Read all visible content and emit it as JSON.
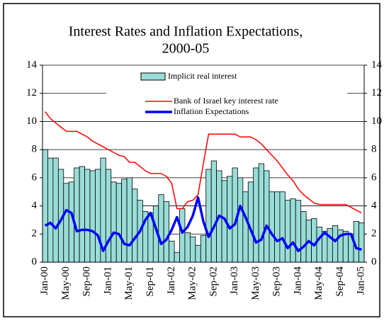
{
  "chart_data": {
    "type": "combo",
    "title": [
      "Interest Rates and Inflation Expectations,",
      "2000-05"
    ],
    "categories": [
      "Jan-00",
      null,
      null,
      null,
      "May-00",
      null,
      null,
      null,
      "Sep-00",
      null,
      null,
      null,
      "Jan-01",
      null,
      null,
      null,
      "May-01",
      null,
      null,
      null,
      "Sep-01",
      null,
      null,
      null,
      "Jan-02",
      null,
      null,
      null,
      "May-02",
      null,
      null,
      null,
      "Sep-02",
      null,
      null,
      null,
      "Jan-03",
      null,
      null,
      null,
      "May-03",
      null,
      null,
      null,
      "Sep-03",
      null,
      null,
      null,
      "Jan-04",
      null,
      null,
      null,
      "May-04",
      null,
      null,
      null,
      "Sep-04",
      null,
      null,
      null,
      "Jan-05"
    ],
    "series": [
      {
        "name": "Implicit real interest",
        "kind": "bar",
        "color": "#99ddd8",
        "values": [
          8.0,
          7.4,
          7.4,
          6.6,
          5.6,
          5.7,
          6.7,
          6.8,
          6.6,
          6.5,
          6.6,
          7.4,
          6.6,
          5.7,
          5.6,
          5.9,
          6.0,
          5.2,
          4.4,
          3.6,
          3.5,
          4.0,
          4.8,
          4.3,
          1.5,
          0.7,
          3.8,
          2.1,
          1.8,
          1.2,
          1.9,
          6.6,
          7.2,
          6.5,
          5.8,
          6.1,
          6.7,
          6.0,
          5.0,
          5.7,
          6.7,
          7.0,
          6.5,
          5.0,
          5.0,
          5.0,
          4.4,
          4.5,
          4.4,
          3.6,
          3.0,
          3.1,
          2.5,
          2.2,
          2.4,
          2.6,
          2.3,
          2.2,
          2.0,
          2.9,
          2.8
        ]
      },
      {
        "name": "Bank of Israel key interest rate",
        "kind": "line",
        "color": "#ff0000",
        "width": 1.5,
        "values": [
          10.7,
          10.2,
          9.9,
          9.6,
          9.3,
          9.3,
          9.3,
          9.1,
          8.9,
          8.6,
          8.4,
          8.2,
          8.0,
          7.8,
          7.6,
          7.5,
          7.1,
          7.1,
          6.8,
          6.5,
          6.3,
          6.3,
          6.3,
          6.1,
          5.6,
          3.8,
          3.8,
          4.3,
          4.4,
          4.8,
          7.0,
          9.1,
          9.1,
          9.1,
          9.1,
          9.1,
          9.1,
          8.9,
          8.9,
          8.9,
          8.7,
          8.4,
          8.0,
          7.6,
          7.2,
          6.7,
          6.2,
          5.8,
          5.2,
          4.8,
          4.5,
          4.2,
          4.1,
          4.1,
          4.1,
          4.1,
          4.1,
          4.1,
          3.9,
          3.7,
          3.5
        ]
      },
      {
        "name": "Inflation Expectations",
        "kind": "line",
        "color": "#0000ff",
        "width": 3.5,
        "values": [
          2.6,
          2.8,
          2.4,
          3.0,
          3.7,
          3.5,
          2.2,
          2.3,
          2.3,
          2.2,
          1.9,
          0.8,
          1.5,
          2.1,
          2.0,
          1.3,
          1.2,
          1.7,
          2.2,
          3.0,
          3.5,
          2.4,
          1.3,
          1.6,
          2.3,
          3.2,
          2.1,
          2.5,
          3.3,
          4.6,
          2.9,
          1.8,
          2.5,
          3.3,
          3.1,
          2.4,
          2.7,
          4.0,
          3.2,
          2.3,
          1.4,
          1.6,
          2.6,
          2.0,
          1.5,
          1.7,
          1.0,
          1.4,
          0.8,
          1.1,
          1.5,
          1.2,
          1.7,
          2.1,
          1.8,
          1.5,
          1.9,
          2.0,
          2.0,
          1.0,
          0.9
        ]
      }
    ],
    "ylim": [
      0,
      14
    ],
    "yticks": [
      0,
      2,
      4,
      6,
      8,
      10,
      12,
      14
    ],
    "y2lim": [
      0,
      14
    ],
    "y2ticks": [
      0,
      2,
      4,
      6,
      8,
      10,
      12,
      14
    ],
    "grid": true
  }
}
